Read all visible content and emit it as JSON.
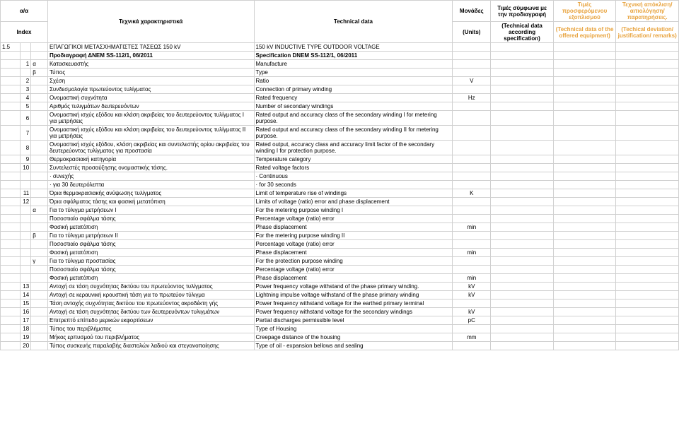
{
  "header": {
    "row1": {
      "idx": "α/α",
      "greek": "Τεχνικά χαρακτηριστικά",
      "tech": "Technical data",
      "units": "Μονάδες",
      "spec": "Τιμές σύμφωνα με την προδιαγραφή",
      "off": "Τιμές προσφερόμενου εξοπλισμού",
      "dev": "Τεχνική απόκλιση/ αιτιολόγηση/ παρατηρήσεις."
    },
    "row2": {
      "idx": "Index",
      "units": "(Units)",
      "spec": "(Technical data according specification)",
      "off": "(Technical data of the offered equipment)",
      "dev": "(Techical deviation/ justification/ remarks)"
    }
  },
  "rows": [
    {
      "c1": "1.5",
      "c2": "",
      "c3": "",
      "g": "ΕΠΑΓΩΓΙΚΟΙ ΜΕΤΑΣΧΗΜΑΤΙΣΤΕΣ ΤΑΣΕΩΣ 150 kV",
      "t": "150 kV INDUCTIVE TYPE OUTDOOR VOLTAGE",
      "u": ""
    },
    {
      "c1": "",
      "c2": "",
      "c3": "",
      "g": "Προδιαγραφή ΔΝΕΜ SS-112/1, 06/2011",
      "t": "Specification DNEM SS-112/1, 06/2011",
      "u": "",
      "bold": true
    },
    {
      "c1": "",
      "c2": "1",
      "c3": "α",
      "g": "Κατασκευαστής",
      "t": "Manufacture",
      "u": ""
    },
    {
      "c1": "",
      "c2": "",
      "c3": "β",
      "g": "Τύπος",
      "t": "Type",
      "u": ""
    },
    {
      "c1": "",
      "c2": "2",
      "c3": "",
      "g": "Σχέση",
      "t": "Ratio",
      "u": "V"
    },
    {
      "c1": "",
      "c2": "3",
      "c3": "",
      "g": "Συνδεσμολογία πρωτεύοντος τυλίγματος",
      "t": "Connection of primary winding",
      "u": ""
    },
    {
      "c1": "",
      "c2": "4",
      "c3": "",
      "g": "Ονομαστική συχνότητα",
      "t": "Rated frequency",
      "u": "Hz"
    },
    {
      "c1": "",
      "c2": "5",
      "c3": "",
      "g": "Αριθμός τυλιγμάτων δευτερευόντων",
      "t": "Number of secondary windings",
      "u": ""
    },
    {
      "c1": "",
      "c2": "6",
      "c3": "",
      "g": "Ονομαστική ισχύς εξόδου και κλάση ακριβείας του δευτερεύοντος τυλίγματος Ι για μετρήσεις",
      "t": "Rated output and accuracy class of the secondary winding I for metering purpose.",
      "u": ""
    },
    {
      "c1": "",
      "c2": "7",
      "c3": "",
      "g": "Ονομαστική ισχύς εξόδου και κλάση ακριβείας του δευτερεύοντος τυλίγματος ΙΙ για μετρήσεις",
      "t": "Rated output and accuracy class of the secondary winding II for metering purpose.",
      "u": ""
    },
    {
      "c1": "",
      "c2": "8",
      "c3": "",
      "g": "Ονομαστική ισχύς εξόδου, κλάση ακριβείας και συντελεστής ορίου ακριβείας του δευτερεύοντος τυλίγματος για προστασία",
      "t": "Rated output, accuracy class and accuracy limit factor of the secondary winding I for protection purpose.",
      "u": ""
    },
    {
      "c1": "",
      "c2": "9",
      "c3": "",
      "g": "Θερμοκρασιακή κατηγορία",
      "t": "Temperature category",
      "u": ""
    },
    {
      "c1": "",
      "c2": "10",
      "c3": "",
      "g": "Συντελεστές προσαύξησης ονομαστικής τάσης.",
      "t": "Rated voltage factors",
      "u": ""
    },
    {
      "c1": "",
      "c2": "",
      "c3": "",
      "g": "·    συνεχής",
      "t": "·    Continuous",
      "u": ""
    },
    {
      "c1": "",
      "c2": "",
      "c3": "",
      "g": "·    για 30 δευτερόλεπτα",
      "t": "·    for 30 seconds",
      "u": ""
    },
    {
      "c1": "",
      "c2": "11",
      "c3": "",
      "g": "Όρια θερμοκρασιακής ανύψωσης τυλίγματος",
      "t": "Limit of temperature rise of windings",
      "u": "K"
    },
    {
      "c1": "",
      "c2": "12",
      "c3": "",
      "g": "Όρια σφάλματος τάσης και φασική μετατόπιση",
      "t": "Limits of voltage (ratio) error and phase displacement",
      "u": ""
    },
    {
      "c1": "",
      "c2": "",
      "c3": "α",
      "g": "Για το τύλιγμα μετρήσεων Ι",
      "t": "For the metering purpose winding I",
      "u": ""
    },
    {
      "c1": "",
      "c2": "",
      "c3": "",
      "g": "Ποσοστιαίο σφάλμα τάσης",
      "t": "Percentage voltage (ratio) error",
      "u": ""
    },
    {
      "c1": "",
      "c2": "",
      "c3": "",
      "g": "Φασική μετατόπιση",
      "t": "Phase displacement",
      "u": "min"
    },
    {
      "c1": "",
      "c2": "",
      "c3": "β",
      "g": "Για το τύλιγμα μετρήσεων ΙΙ",
      "t": "For the metering purpose winding II",
      "u": ""
    },
    {
      "c1": "",
      "c2": "",
      "c3": "",
      "g": "Ποσοστιαίο σφάλμα τάσης",
      "t": "Percentage voltage (ratio) error",
      "u": ""
    },
    {
      "c1": "",
      "c2": "",
      "c3": "",
      "g": "Φασική μετατόπιση",
      "t": "Phase displacement",
      "u": "min"
    },
    {
      "c1": "",
      "c2": "",
      "c3": "γ",
      "g": "Για το τύλιγμα προστασίας",
      "t": "For the protection purpose winding",
      "u": ""
    },
    {
      "c1": "",
      "c2": "",
      "c3": "",
      "g": "Ποσοστιαίο σφάλμα τάσης",
      "t": "Percentage voltage (ratio) error",
      "u": ""
    },
    {
      "c1": "",
      "c2": "",
      "c3": "",
      "g": "Φασική μετατόπιση",
      "t": "Phase displacement",
      "u": "min"
    },
    {
      "c1": "",
      "c2": "13",
      "c3": "",
      "g": "Αντοχή σε τάση συχνότητας δικτύου του πρωτεύοντος τυλίγματος",
      "t": "Power frequency voltage withstand of the phase primary winding.",
      "u": "kV"
    },
    {
      "c1": "",
      "c2": "14",
      "c3": "",
      "g": "Αντοχή σε κεραυνική κρουστική τάση για το πρωτεύον τύλιγμα",
      "t": "Lightning impulse voltage withstand of the phase primary winding",
      "u": "kV"
    },
    {
      "c1": "",
      "c2": "15",
      "c3": "",
      "g": "Τάση αντοχής συχνότητας δικτύου του πρωτεύοντος ακροδέκτη γής",
      "t": "Power frequency withstand voltage for the earthed primary terminal",
      "u": ""
    },
    {
      "c1": "",
      "c2": "16",
      "c3": "",
      "g": "Αντοχή σε τάση συχνότητας δικτύου των δευτερευόντων τυλιγμάτων",
      "t": "Power frequency withstand voltage for the secondary windings",
      "u": "kV"
    },
    {
      "c1": "",
      "c2": "17",
      "c3": "",
      "g": "Επιτρεπτό επίπεδο μερικών εκφορτίσεων",
      "t": "Partial discharges permissible level",
      "u": "pC"
    },
    {
      "c1": "",
      "c2": "18",
      "c3": "",
      "g": "Τύπος του περιβλήματος",
      "t": "Type of Housing",
      "u": ""
    },
    {
      "c1": "",
      "c2": "19",
      "c3": "",
      "g": "Μήκος ερπυσμού του περιβλήματος",
      "t": "Creepage distance of the housing",
      "u": "mm"
    },
    {
      "c1": "",
      "c2": "20",
      "c3": "",
      "g": "Τύπος συσκευής παραλαβής διαστολών λαδιού και στεγανοποίησης",
      "t": "Type of oil - expansion bellows and sealing",
      "u": ""
    }
  ]
}
